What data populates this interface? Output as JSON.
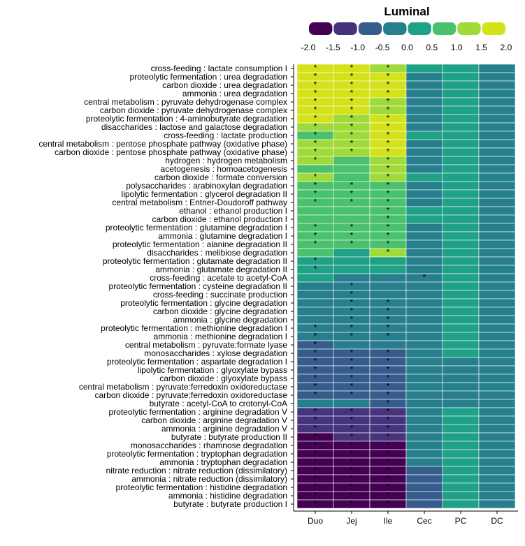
{
  "chart_data": {
    "type": "heatmap",
    "legend": {
      "title": "Luminal",
      "ticks": [
        "-2.0",
        "-1.5",
        "-1.0",
        "-0.5",
        "0.0",
        "0.5",
        "1.0",
        "1.5",
        "2.0"
      ],
      "colors": [
        "#440154",
        "#46337e",
        "#365c8d",
        "#277f8e",
        "#1fa187",
        "#4ac16d",
        "#a0da39",
        "#d4e21a"
      ],
      "placement": "top"
    },
    "columns": [
      "Duo",
      "Jej",
      "Ile",
      "Cec",
      "PC",
      "DC"
    ],
    "rows": [
      "cross-feeding : lactate consumption I",
      "proteolytic fermentation : urea degradation",
      "carbon dioxide : urea degradation",
      "ammonia : urea degradation",
      "central metabolism : pyruvate dehydrogenase complex",
      "carbon dioxide : pyruvate dehydrogenase complex",
      "proteolytic fermentation : 4-aminobutyrate degradation",
      "disaccharides : lactose and galactose degradation",
      "cross-feeding : lactate production",
      "central metabolism : pentose phosphate pathway (oxidative phase)",
      "carbon dioxide : pentose phosphate pathway (oxidative phase)",
      "hydrogen : hydrogen metabolism",
      "acetogenesis : homoacetogenesis",
      "carbon dioxide : formate conversion",
      "polysaccharides : arabinoxylan degradation",
      "lipolytic fermentation : glycerol degradation II",
      "central metabolism : Entner-Doudoroff pathway",
      "ethanol : ethanol production I",
      "carbon dioxide : ethanol production I",
      "proteolytic fermentation : glutamine degradation I",
      "ammonia : glutamine degradation I",
      "proteolytic fermentation : alanine degradation II",
      "disaccharides : melibiose degradation",
      "proteolytic fermentation : glutamate degradation II",
      "ammonia : glutamate degradation II",
      "cross-feeding : acetate to acetyl-CoA",
      "proteolytic fermentation : cysteine degradation II",
      "cross-feeding : succinate production",
      "proteolytic fermentation : glycine degradation",
      "carbon dioxide : glycine degradation",
      "ammonia : glycine degradation",
      "proteolytic fermentation : methionine degradation I",
      "ammonia : methionine degradation I",
      "central metabolism : pyruvate:formate lyase",
      "monosaccharides : xylose degradation",
      "proteolytic fermentation : aspartate degradation I",
      "lipolytic fermentation : glyoxylate bypass",
      "carbon dioxide : glyoxylate bypass",
      "central metabolism : pyruvate:ferredoxin oxidoreductase",
      "carbon dioxide : pyruvate:ferredoxin oxidoreductase",
      "butyrate : acetyl-CoA to crotonyl-CoA",
      "proteolytic fermentation : arginine degradation V",
      "carbon dioxide : arginine degradation V",
      "ammonia : arginine degradation V",
      "butyrate : butyrate production II",
      "monosaccharides : rhamnose degradation",
      "proteolytic fermentation : tryptophan degradation",
      "ammonia : tryptophan degradation",
      "nitrate reduction : nitrate reduction (dissimilatory)",
      "ammonia : nitrate reduction (dissimilatory)",
      "proteolytic fermentation : histidine degradation",
      "ammonia : histidine degradation",
      "butyrate : butyrate production I"
    ],
    "values": [
      [
        1.9,
        1.9,
        1.3,
        0.3,
        0.4,
        -0.1
      ],
      [
        1.9,
        1.9,
        1.9,
        -0.1,
        0.4,
        -0.1
      ],
      [
        1.9,
        1.9,
        1.9,
        -0.1,
        0.4,
        -0.1
      ],
      [
        1.9,
        1.9,
        1.9,
        -0.1,
        0.4,
        -0.1
      ],
      [
        1.9,
        1.9,
        1.3,
        -0.1,
        0.4,
        -0.1
      ],
      [
        1.9,
        1.9,
        1.3,
        -0.1,
        0.4,
        -0.1
      ],
      [
        1.9,
        1.3,
        1.9,
        -0.1,
        0.4,
        -0.1
      ],
      [
        1.3,
        1.3,
        1.9,
        -0.1,
        0.4,
        -0.1
      ],
      [
        0.9,
        1.3,
        1.9,
        0.3,
        0.4,
        -0.1
      ],
      [
        1.3,
        1.3,
        1.9,
        -0.1,
        0.4,
        -0.1
      ],
      [
        1.3,
        1.3,
        1.9,
        -0.1,
        0.4,
        -0.1
      ],
      [
        1.3,
        0.9,
        1.3,
        -0.1,
        0.4,
        -0.1
      ],
      [
        0.9,
        0.9,
        1.3,
        -0.1,
        0.4,
        -0.1
      ],
      [
        1.3,
        0.9,
        1.3,
        0.3,
        0.4,
        -0.1
      ],
      [
        0.9,
        0.9,
        0.9,
        -0.1,
        0.4,
        -0.1
      ],
      [
        0.9,
        0.9,
        0.9,
        -0.1,
        0.4,
        -0.1
      ],
      [
        0.9,
        0.9,
        0.9,
        -0.1,
        0.4,
        -0.1
      ],
      [
        0.9,
        0.9,
        0.9,
        0.3,
        0.4,
        -0.1
      ],
      [
        0.9,
        0.9,
        0.9,
        0.3,
        0.4,
        -0.1
      ],
      [
        0.9,
        0.9,
        0.9,
        -0.1,
        0.4,
        -0.1
      ],
      [
        0.9,
        0.9,
        0.9,
        -0.1,
        0.4,
        -0.1
      ],
      [
        0.9,
        0.9,
        0.9,
        -0.1,
        0.4,
        -0.1
      ],
      [
        0.9,
        0.3,
        1.3,
        -0.1,
        0.4,
        -0.1
      ],
      [
        0.3,
        0.3,
        0.3,
        -0.1,
        0.4,
        -0.1
      ],
      [
        0.3,
        0.3,
        0.3,
        -0.1,
        0.4,
        -0.1
      ],
      [
        0.3,
        -0.1,
        -0.1,
        -0.1,
        0.4,
        -0.1
      ],
      [
        -0.1,
        -0.1,
        -0.1,
        -0.1,
        0.4,
        -0.1
      ],
      [
        -0.1,
        -0.1,
        -0.1,
        -0.1,
        0.4,
        -0.1
      ],
      [
        -0.1,
        -0.1,
        -0.1,
        -0.1,
        0.4,
        -0.1
      ],
      [
        -0.1,
        -0.1,
        -0.1,
        -0.1,
        0.4,
        -0.1
      ],
      [
        -0.1,
        -0.1,
        -0.1,
        -0.1,
        0.4,
        -0.1
      ],
      [
        -0.5,
        -0.5,
        -0.5,
        -0.1,
        0.4,
        -0.1
      ],
      [
        -0.5,
        -0.5,
        -0.5,
        -0.1,
        0.4,
        -0.1
      ],
      [
        -0.9,
        -0.5,
        -0.5,
        -0.1,
        0.4,
        -0.1
      ],
      [
        -0.9,
        -0.9,
        -0.9,
        -0.1,
        0.4,
        -0.1
      ],
      [
        -0.9,
        -0.9,
        -0.9,
        -0.1,
        -0.1,
        -0.1
      ],
      [
        -0.9,
        -0.9,
        -0.9,
        -0.1,
        -0.1,
        -0.1
      ],
      [
        -0.9,
        -0.9,
        -0.9,
        -0.1,
        -0.1,
        -0.1
      ],
      [
        -0.9,
        -0.9,
        -0.9,
        -0.1,
        -0.1,
        -0.1
      ],
      [
        -0.9,
        -0.9,
        -0.9,
        -0.1,
        -0.1,
        -0.1
      ],
      [
        -0.5,
        -0.5,
        -0.9,
        -0.1,
        -0.1,
        -0.1
      ],
      [
        -1.3,
        -1.3,
        -1.3,
        -0.1,
        0.4,
        -0.1
      ],
      [
        -1.3,
        -1.3,
        -1.3,
        -0.1,
        0.4,
        -0.1
      ],
      [
        -1.3,
        -1.3,
        -1.3,
        -0.1,
        0.4,
        -0.1
      ],
      [
        -1.9,
        -1.3,
        -1.3,
        -0.1,
        0.4,
        -0.1
      ],
      [
        -1.9,
        -1.9,
        -1.9,
        -0.1,
        0.4,
        -0.1
      ],
      [
        -1.9,
        -1.9,
        -1.9,
        -0.1,
        0.4,
        -0.1
      ],
      [
        -1.9,
        -1.9,
        -1.9,
        -0.1,
        0.4,
        -0.1
      ],
      [
        -1.9,
        -1.9,
        -1.9,
        -0.9,
        0.4,
        -0.1
      ],
      [
        -1.9,
        -1.9,
        -1.9,
        -0.9,
        0.4,
        -0.1
      ],
      [
        -1.9,
        -1.9,
        -1.9,
        -0.9,
        0.4,
        -0.1
      ],
      [
        -1.9,
        -1.9,
        -1.9,
        -0.9,
        0.4,
        -0.1
      ],
      [
        -1.9,
        -1.9,
        -1.9,
        -0.9,
        0.4,
        -0.1
      ]
    ],
    "significance_mark": "*",
    "significant": [
      [
        1,
        1,
        1,
        0,
        0,
        0
      ],
      [
        1,
        1,
        1,
        0,
        0,
        0
      ],
      [
        1,
        1,
        1,
        0,
        0,
        0
      ],
      [
        1,
        1,
        1,
        0,
        0,
        0
      ],
      [
        1,
        1,
        1,
        0,
        0,
        0
      ],
      [
        1,
        1,
        1,
        0,
        0,
        0
      ],
      [
        1,
        1,
        1,
        0,
        0,
        0
      ],
      [
        1,
        1,
        1,
        0,
        0,
        0
      ],
      [
        1,
        1,
        1,
        0,
        0,
        0
      ],
      [
        1,
        1,
        1,
        0,
        0,
        0
      ],
      [
        1,
        1,
        1,
        0,
        0,
        0
      ],
      [
        1,
        0,
        1,
        0,
        0,
        0
      ],
      [
        0,
        0,
        1,
        0,
        0,
        0
      ],
      [
        1,
        0,
        1,
        0,
        0,
        0
      ],
      [
        1,
        1,
        1,
        0,
        0,
        0
      ],
      [
        1,
        1,
        1,
        0,
        0,
        0
      ],
      [
        1,
        1,
        1,
        0,
        0,
        0
      ],
      [
        0,
        0,
        1,
        0,
        0,
        0
      ],
      [
        0,
        0,
        1,
        0,
        0,
        0
      ],
      [
        1,
        1,
        1,
        0,
        0,
        0
      ],
      [
        1,
        1,
        1,
        0,
        0,
        0
      ],
      [
        1,
        1,
        1,
        0,
        0,
        0
      ],
      [
        0,
        0,
        1,
        0,
        0,
        0
      ],
      [
        1,
        0,
        0,
        0,
        0,
        0
      ],
      [
        1,
        0,
        0,
        0,
        0,
        0
      ],
      [
        0,
        0,
        0,
        1,
        0,
        0
      ],
      [
        0,
        1,
        0,
        0,
        0,
        0
      ],
      [
        0,
        1,
        0,
        0,
        0,
        0
      ],
      [
        0,
        1,
        1,
        0,
        0,
        0
      ],
      [
        0,
        1,
        1,
        0,
        0,
        0
      ],
      [
        0,
        1,
        1,
        0,
        0,
        0
      ],
      [
        1,
        1,
        1,
        0,
        0,
        0
      ],
      [
        1,
        1,
        1,
        0,
        0,
        0
      ],
      [
        1,
        0,
        0,
        0,
        0,
        0
      ],
      [
        1,
        1,
        1,
        0,
        0,
        0
      ],
      [
        1,
        1,
        1,
        0,
        0,
        0
      ],
      [
        1,
        1,
        1,
        0,
        0,
        0
      ],
      [
        1,
        1,
        1,
        0,
        0,
        0
      ],
      [
        1,
        1,
        1,
        0,
        0,
        0
      ],
      [
        1,
        1,
        1,
        0,
        0,
        0
      ],
      [
        0,
        0,
        1,
        0,
        0,
        0
      ],
      [
        1,
        1,
        1,
        0,
        0,
        0
      ],
      [
        1,
        1,
        1,
        0,
        0,
        0
      ],
      [
        1,
        1,
        1,
        0,
        0,
        0
      ],
      [
        1,
        1,
        1,
        0,
        0,
        0
      ],
      [
        1,
        1,
        1,
        0,
        0,
        0
      ],
      [
        1,
        1,
        1,
        0,
        0,
        0
      ],
      [
        1,
        1,
        1,
        0,
        0,
        0
      ],
      [
        1,
        1,
        1,
        0,
        0,
        0
      ],
      [
        1,
        1,
        1,
        0,
        0,
        0
      ],
      [
        1,
        1,
        1,
        0,
        0,
        0
      ],
      [
        1,
        1,
        1,
        0,
        0,
        0
      ],
      [
        1,
        1,
        1,
        0,
        0,
        0
      ]
    ]
  }
}
